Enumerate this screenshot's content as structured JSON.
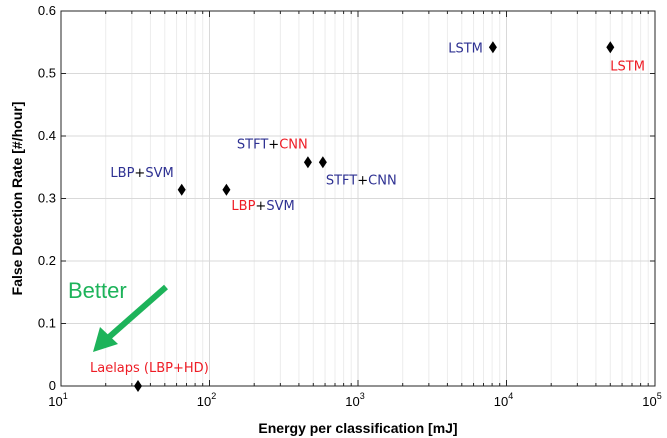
{
  "chart_data": {
    "type": "scatter",
    "xscale": "log",
    "xlim": [
      10,
      100000
    ],
    "ylim": [
      0,
      0.6
    ],
    "grid": true,
    "xlabel": "Energy per classification [mJ]",
    "ylabel": "False Detection Rate [#/hour]",
    "xticks": [
      {
        "base": "10",
        "exp": "1",
        "value": 10
      },
      {
        "base": "10",
        "exp": "2",
        "value": 100
      },
      {
        "base": "10",
        "exp": "3",
        "value": 1000
      },
      {
        "base": "10",
        "exp": "4",
        "value": 10000
      },
      {
        "base": "10",
        "exp": "5",
        "value": 100000
      }
    ],
    "yticks": [
      "0",
      "0.1",
      "0.2",
      "0.3",
      "0.4",
      "0.5",
      "0.6"
    ],
    "points": [
      {
        "x": 33,
        "y": 0.0,
        "label_parts": [
          {
            "t": "Laelaps (LBP+",
            "c": "red"
          },
          {
            "t": "HD)",
            "c": "red"
          }
        ]
      },
      {
        "x": 65,
        "y": 0.314,
        "label_parts": [
          {
            "t": "LBP",
            "c": "blue"
          },
          {
            "t": "+",
            "c": "black"
          },
          {
            "t": "SVM",
            "c": "blue"
          }
        ]
      },
      {
        "x": 130,
        "y": 0.314,
        "label_parts": [
          {
            "t": "LBP",
            "c": "red"
          },
          {
            "t": "+",
            "c": "black"
          },
          {
            "t": "SVM",
            "c": "blue"
          }
        ]
      },
      {
        "x": 460,
        "y": 0.358,
        "label_parts": [
          {
            "t": "STFT",
            "c": "blue"
          },
          {
            "t": "+",
            "c": "black"
          },
          {
            "t": "CNN",
            "c": "red"
          }
        ]
      },
      {
        "x": 580,
        "y": 0.358,
        "label_parts": [
          {
            "t": "STFT",
            "c": "blue"
          },
          {
            "t": "+",
            "c": "black"
          },
          {
            "t": "CNN",
            "c": "blue"
          }
        ]
      },
      {
        "x": 8100,
        "y": 0.542,
        "label_parts": [
          {
            "t": "LSTM",
            "c": "blue"
          }
        ]
      },
      {
        "x": 50000,
        "y": 0.542,
        "label_parts": [
          {
            "t": "LSTM",
            "c": "red"
          }
        ]
      }
    ],
    "annotation": {
      "text": "Better",
      "color": "#1db35a"
    },
    "colors": {
      "blue": "#2e3192",
      "red": "#ee1c25",
      "black": "#000000",
      "marker": "#000000"
    }
  }
}
